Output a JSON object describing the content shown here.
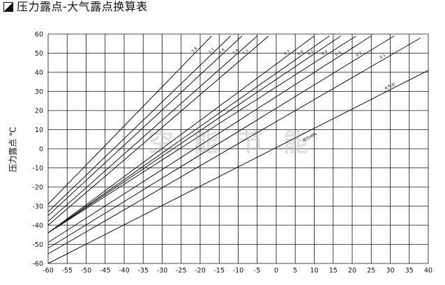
{
  "header": {
    "title": "压力露点-大气露点换算表"
  },
  "icons": {
    "title_marker": "black-triangle-corner-icon"
  },
  "colors": {
    "background": "#ffffff",
    "grid": "#111111",
    "lines": "#111111",
    "watermark": "#c8c8c8"
  },
  "watermark": {
    "text": "空 能 节 能"
  },
  "chart_data": {
    "type": "line",
    "title": "",
    "ylabel": "压力露点 ℃",
    "xlabel": "",
    "xlim": [
      -60,
      40
    ],
    "ylim": [
      -60,
      60
    ],
    "xticks": [
      -60,
      -55,
      -50,
      -45,
      -40,
      -35,
      -30,
      -25,
      -20,
      -15,
      -10,
      -5,
      0,
      5,
      10,
      15,
      20,
      25,
      30,
      35,
      40
    ],
    "yticks": [
      -60,
      -50,
      -40,
      -30,
      -20,
      -10,
      0,
      10,
      20,
      30,
      40,
      50,
      60
    ],
    "grid": true,
    "legend": "none",
    "series": [
      {
        "name": "2.8",
        "x": [
          -60,
          -17
        ],
        "y": [
          -29,
          59
        ]
      },
      {
        "name": "2.1",
        "x": [
          -60,
          -12
        ],
        "y": [
          -33,
          59
        ]
      },
      {
        "name": "1.8",
        "x": [
          -60,
          -9
        ],
        "y": [
          -35,
          59
        ]
      },
      {
        "name": "1.4",
        "x": [
          -60,
          -5
        ],
        "y": [
          -38,
          59
        ]
      },
      {
        "name": "1.1",
        "x": [
          -60,
          -2
        ],
        "y": [
          -40,
          59
        ]
      },
      {
        "name": "0.7",
        "x": [
          -60,
          10
        ],
        "y": [
          -44,
          59
        ]
      },
      {
        "name": "0.6",
        "x": [
          -60,
          14
        ],
        "y": [
          -44,
          59
        ]
      },
      {
        "name": "0.5",
        "x": [
          -60,
          17
        ],
        "y": [
          -44,
          59
        ]
      },
      {
        "name": "0.4",
        "x": [
          -60,
          21
        ],
        "y": [
          -44,
          59
        ]
      },
      {
        "name": "0.3",
        "x": [
          -60,
          25
        ],
        "y": [
          -49,
          59
        ]
      },
      {
        "name": "0.2",
        "x": [
          -60,
          31
        ],
        "y": [
          -52,
          59
        ]
      },
      {
        "name": "0.1",
        "x": [
          -60,
          38
        ],
        "y": [
          -55,
          58
        ]
      },
      {
        "name": "大气压",
        "x": [
          -60,
          40
        ],
        "y": [
          -60,
          41
        ]
      }
    ],
    "annotations": [
      {
        "text": "压力MPa",
        "x": 9,
        "y": 5.5
      }
    ]
  }
}
